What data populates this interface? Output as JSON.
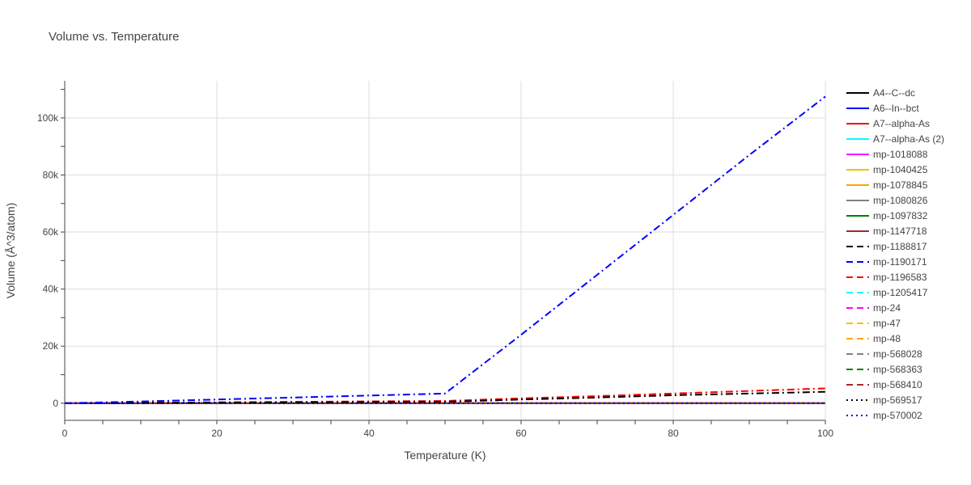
{
  "chart_data": {
    "type": "line",
    "title": "Volume vs. Temperature",
    "xlabel": "Temperature (K)",
    "ylabel": "Volume (Å^3/atom)",
    "xlim": [
      0,
      100
    ],
    "ylim": [
      -6000,
      113000
    ],
    "xticks": [
      0,
      20,
      40,
      60,
      80,
      100
    ],
    "xtick_labels": [
      "0",
      "20",
      "40",
      "60",
      "80",
      "100"
    ],
    "yticks": [
      0,
      20000,
      40000,
      60000,
      80000,
      100000
    ],
    "ytick_labels": [
      "0",
      "20k",
      "40k",
      "60k",
      "80k",
      "100k"
    ],
    "grid": true,
    "legend_position": "right",
    "series": [
      {
        "name": "A4--C--dc",
        "color": "#000000",
        "dash": "solid",
        "x": [
          0,
          100
        ],
        "y": [
          0,
          0
        ]
      },
      {
        "name": "A6--In--bct",
        "color": "#0000ff",
        "dash": "solid",
        "x": [
          0,
          100
        ],
        "y": [
          0,
          0
        ]
      },
      {
        "name": "A7--alpha-As",
        "color": "#ff0000",
        "dash": "solid",
        "x": [
          0,
          100
        ],
        "y": [
          0,
          0
        ]
      },
      {
        "name": "A7--alpha-As (2)",
        "color": "#00ffff",
        "dash": "solid",
        "x": [
          0,
          100
        ],
        "y": [
          0,
          0
        ]
      },
      {
        "name": "mp-1018088",
        "color": "#ff00ff",
        "dash": "solid",
        "x": [
          0,
          100
        ],
        "y": [
          0,
          0
        ]
      },
      {
        "name": "mp-1040425",
        "color": "#f0c000",
        "dash": "solid",
        "x": [
          0,
          100
        ],
        "y": [
          0,
          0
        ]
      },
      {
        "name": "mp-1078845",
        "color": "#ffa500",
        "dash": "solid",
        "x": [
          0,
          100
        ],
        "y": [
          0,
          0
        ]
      },
      {
        "name": "mp-1080826",
        "color": "#808080",
        "dash": "solid",
        "x": [
          0,
          100
        ],
        "y": [
          0,
          0
        ]
      },
      {
        "name": "mp-1097832",
        "color": "#008000",
        "dash": "solid",
        "x": [
          0,
          100
        ],
        "y": [
          0,
          0
        ]
      },
      {
        "name": "mp-1147718",
        "color": "#a52a2a",
        "dash": "solid",
        "x": [
          0,
          100
        ],
        "y": [
          0,
          0
        ]
      },
      {
        "name": "mp-1188817",
        "color": "#000000",
        "dash": "dash",
        "x": [
          0,
          100
        ],
        "y": [
          0,
          0
        ]
      },
      {
        "name": "mp-1190171",
        "color": "#0000ff",
        "dash": "dash",
        "x": [
          0,
          100
        ],
        "y": [
          0,
          0
        ]
      },
      {
        "name": "mp-1196583",
        "color": "#ff0000",
        "dash": "dash",
        "x": [
          0,
          100
        ],
        "y": [
          0,
          0
        ]
      },
      {
        "name": "mp-1205417",
        "color": "#00ffff",
        "dash": "dash",
        "x": [
          0,
          100
        ],
        "y": [
          0,
          0
        ]
      },
      {
        "name": "mp-24",
        "color": "#ff00ff",
        "dash": "dash",
        "x": [
          0,
          100
        ],
        "y": [
          0,
          0
        ]
      },
      {
        "name": "mp-47",
        "color": "#f0c000",
        "dash": "dash",
        "x": [
          0,
          100
        ],
        "y": [
          0,
          0
        ]
      },
      {
        "name": "mp-48",
        "color": "#ffa500",
        "dash": "dash",
        "x": [
          0,
          100
        ],
        "y": [
          0,
          0
        ]
      },
      {
        "name": "mp-568028",
        "color": "#808080",
        "dash": "dash",
        "x": [
          0,
          100
        ],
        "y": [
          0,
          0
        ]
      },
      {
        "name": "mp-568363",
        "color": "#008000",
        "dash": "dash",
        "x": [
          0,
          100
        ],
        "y": [
          0,
          0
        ]
      },
      {
        "name": "mp-568410",
        "color": "#a52a2a",
        "dash": "dash",
        "x": [
          0,
          100
        ],
        "y": [
          0,
          0
        ]
      },
      {
        "name": "mp-569517",
        "color": "#000000",
        "dash": "dot",
        "x": [
          0,
          100
        ],
        "y": [
          0,
          0
        ]
      },
      {
        "name": "mp-570002",
        "color": "#0000ff",
        "dash": "dot",
        "x": [
          0,
          100
        ],
        "y": [
          0,
          0
        ]
      }
    ],
    "overlay_curves": [
      {
        "color": "#ff0000",
        "dash": "dashdot",
        "x": [
          0,
          50,
          60,
          70,
          80,
          90,
          100
        ],
        "y": [
          0,
          800,
          1700,
          2500,
          3400,
          4300,
          5200
        ]
      },
      {
        "color": "#000000",
        "dash": "dashdot",
        "x": [
          0,
          50,
          60,
          70,
          80,
          90,
          100
        ],
        "y": [
          0,
          500,
          1300,
          2000,
          2800,
          3400,
          4000
        ]
      },
      {
        "color": "#0000ff",
        "dash": "dashdot",
        "x": [
          0,
          10,
          20,
          30,
          40,
          50,
          60,
          70,
          80,
          90,
          100
        ],
        "y": [
          0,
          600,
          1300,
          2000,
          2700,
          3400,
          24000,
          45000,
          66000,
          87000,
          107500
        ]
      }
    ]
  }
}
